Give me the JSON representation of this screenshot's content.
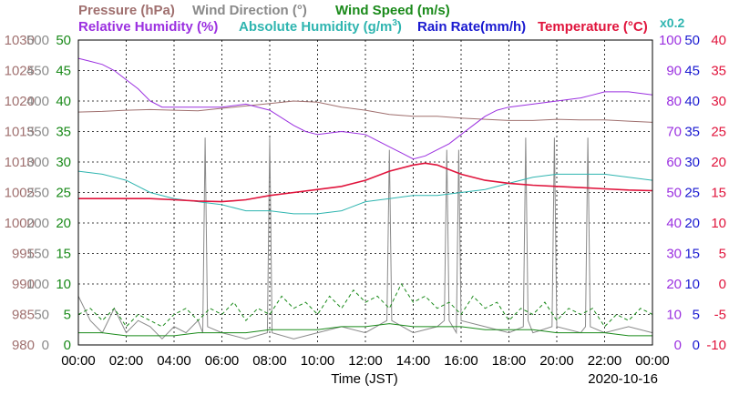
{
  "chart_data": {
    "type": "line",
    "title": "",
    "date": "2020-10-16",
    "xlabel": "Time (JST)",
    "x_ticks": [
      "00:00",
      "02:00",
      "04:00",
      "06:00",
      "08:00",
      "10:00",
      "12:00",
      "14:00",
      "16:00",
      "18:00",
      "20:00",
      "22:00",
      "00:00"
    ],
    "legend": {
      "pressure": "Pressure (hPa)",
      "wind_direction": "Wind Direction (°)",
      "wind_speed": "Wind Speed (m/s)",
      "relative_humidity": "Relative Humidity (%)",
      "absolute_humidity": "Absolute Humidity (g/m",
      "absolute_humidity_sup": "3",
      "absolute_humidity_close": ")",
      "rain_rate": "Rain Rate(mm/h)",
      "temperature": "Temperature (°C)",
      "absolute_humidity_scale": "x0.2"
    },
    "axes": {
      "pressure": {
        "ticks": [
          "980",
          "985",
          "990",
          "995",
          "1000",
          "1005",
          "1010",
          "1015",
          "1020",
          "1025",
          "1030"
        ],
        "range": [
          980,
          1030
        ]
      },
      "wind_direction": {
        "ticks": [
          "0",
          "50",
          "100",
          "150",
          "200",
          "250",
          "300",
          "350",
          "400",
          "450",
          "500"
        ],
        "range": [
          0,
          500
        ]
      },
      "wind_speed": {
        "ticks": [
          "0",
          "5",
          "10",
          "15",
          "20",
          "25",
          "30",
          "35",
          "40",
          "45",
          "50"
        ],
        "range": [
          0,
          50
        ]
      },
      "relative_humidity": {
        "ticks": [
          "0",
          "10",
          "20",
          "30",
          "40",
          "50",
          "60",
          "70",
          "80",
          "90",
          "100"
        ],
        "range": [
          0,
          100
        ]
      },
      "rain_rate": {
        "ticks": [
          "0",
          "5",
          "10",
          "15",
          "20",
          "25",
          "30",
          "35",
          "40",
          "45",
          "50"
        ],
        "range": [
          0,
          50
        ]
      },
      "temperature": {
        "ticks": [
          "-10",
          "-5",
          "0",
          "5",
          "10",
          "15",
          "20",
          "25",
          "30",
          "35",
          "40"
        ],
        "range": [
          -10,
          40
        ]
      }
    },
    "x_range_hours": [
      0,
      24
    ],
    "grid": true,
    "colors": {
      "pressure": "#a0706f",
      "wind_direction": "#8a8a8a",
      "wind_speed": "#1a8a1a",
      "relative_humidity": "#9b30e0",
      "absolute_humidity": "#2fb5b0",
      "rain_rate": "#1a1ad0",
      "temperature": "#e0143c"
    },
    "series": [
      {
        "key": "pressure",
        "name": "Pressure (hPa)",
        "x": [
          0,
          1,
          2,
          3,
          4,
          5,
          6,
          7,
          8,
          9,
          10,
          11,
          12,
          13,
          14,
          15,
          16,
          17,
          18,
          19,
          20,
          21,
          22,
          23,
          24
        ],
        "y": [
          1018.2,
          1018.3,
          1018.5,
          1018.6,
          1018.5,
          1018.4,
          1018.8,
          1019.2,
          1019.6,
          1020.0,
          1019.8,
          1019.0,
          1018.5,
          1017.8,
          1017.5,
          1017.5,
          1017.2,
          1017.0,
          1016.8,
          1016.8,
          1017.0,
          1016.9,
          1016.9,
          1016.7,
          1016.5
        ]
      },
      {
        "key": "relative_humidity",
        "name": "Relative Humidity (%)",
        "x": [
          0,
          0.5,
          1,
          1.5,
          2,
          2.5,
          3,
          3.5,
          4,
          4.5,
          5,
          6,
          7,
          8,
          9,
          9.5,
          10,
          11,
          12,
          12.5,
          13,
          13.5,
          14,
          14.5,
          15,
          15.5,
          16,
          16.5,
          17,
          17.5,
          18,
          19,
          20,
          21,
          21.5,
          22,
          23,
          24
        ],
        "y": [
          94,
          93,
          92,
          90,
          87,
          84,
          80,
          78,
          78,
          78,
          78,
          78,
          79,
          77,
          72,
          70,
          69,
          70,
          69,
          67,
          65,
          63,
          61,
          62,
          64,
          66,
          69,
          72,
          75,
          77,
          78,
          79,
          80,
          81,
          82,
          83,
          83,
          82
        ]
      },
      {
        "key": "absolute_humidity",
        "name": "Absolute Humidity (g/m3)",
        "x": [
          0,
          1,
          2,
          3,
          4,
          5,
          6,
          7,
          8,
          9,
          10,
          11,
          12,
          13,
          14,
          15,
          16,
          17,
          18,
          19,
          20,
          21,
          22,
          23,
          24
        ],
        "y": [
          57,
          56,
          54,
          50,
          48,
          47,
          46,
          44,
          44,
          43,
          43,
          44,
          47,
          48,
          49,
          49,
          50,
          51,
          53,
          55,
          56,
          56,
          56,
          55,
          54
        ]
      },
      {
        "key": "temperature",
        "name": "Temperature (°C)",
        "x": [
          0,
          1,
          2,
          3,
          4,
          5,
          6,
          7,
          8,
          9,
          10,
          11,
          12,
          13,
          14,
          14.5,
          15,
          16,
          17,
          18,
          19,
          20,
          21,
          22,
          23,
          24
        ],
        "y": [
          14.0,
          14.0,
          14.0,
          14.0,
          13.8,
          13.6,
          13.5,
          13.8,
          14.5,
          15.0,
          15.5,
          16.0,
          17.0,
          18.5,
          19.5,
          19.8,
          19.5,
          18.0,
          17.0,
          16.5,
          16.2,
          16.0,
          15.8,
          15.6,
          15.4,
          15.3
        ]
      },
      {
        "key": "wind_speed_max",
        "name": "Wind Speed (m/s) gust",
        "x": [
          0,
          0.5,
          1,
          1.5,
          2,
          2.5,
          3,
          3.5,
          4,
          4.5,
          5,
          5.5,
          6,
          6.5,
          7,
          7.5,
          8,
          8.5,
          9,
          9.5,
          10,
          10.5,
          11,
          11.5,
          12,
          12.5,
          13,
          13.5,
          14,
          14.5,
          15,
          15.5,
          16,
          16.5,
          17,
          17.5,
          18,
          18.5,
          19,
          19.5,
          20,
          20.5,
          21,
          21.5,
          22,
          22.5,
          23,
          23.5,
          24
        ],
        "y": [
          5,
          6,
          4,
          6,
          3,
          5,
          4,
          3,
          5,
          6,
          4,
          6,
          5,
          7,
          4,
          6,
          5,
          8,
          6,
          7,
          5,
          8,
          6,
          9,
          7,
          8,
          6,
          10,
          7,
          8,
          6,
          7,
          5,
          8,
          6,
          7,
          4,
          6,
          5,
          7,
          4,
          6,
          5,
          6,
          3,
          5,
          4,
          6,
          5
        ]
      },
      {
        "key": "wind_speed_avg",
        "name": "Wind Speed (m/s) mean",
        "x": [
          0,
          1,
          2,
          3,
          4,
          5,
          6,
          7,
          8,
          9,
          10,
          11,
          12,
          13,
          14,
          15,
          16,
          17,
          18,
          19,
          20,
          21,
          22,
          23,
          24
        ],
        "y": [
          2,
          2,
          1.5,
          1.5,
          1.5,
          2,
          2,
          2,
          2.5,
          2.5,
          2.5,
          3,
          3,
          3.5,
          3,
          3,
          3,
          2.5,
          2.5,
          2.5,
          2,
          2,
          2,
          1.5,
          1.5
        ]
      },
      {
        "key": "wind_direction",
        "name": "Wind Direction (°)",
        "x": [
          0,
          0.5,
          1,
          1.5,
          2,
          2.5,
          3,
          3.5,
          4,
          4.5,
          5,
          5.2,
          5.3,
          5.4,
          6,
          7,
          7.9,
          8.0,
          8.1,
          9,
          10,
          11,
          12,
          12.9,
          13.0,
          13.1,
          14,
          15,
          15.3,
          15.4,
          15.5,
          15.8,
          15.9,
          16,
          17,
          18,
          18.6,
          18.7,
          18.8,
          19,
          19.8,
          19.9,
          20,
          21,
          21.2,
          21.3,
          21.4,
          22,
          23,
          24
        ],
        "y": [
          80,
          40,
          20,
          60,
          20,
          40,
          30,
          10,
          30,
          20,
          40,
          20,
          340,
          30,
          20,
          10,
          20,
          340,
          20,
          10,
          20,
          30,
          20,
          40,
          320,
          40,
          20,
          30,
          40,
          320,
          40,
          20,
          320,
          40,
          30,
          20,
          30,
          340,
          40,
          20,
          30,
          340,
          30,
          20,
          30,
          340,
          30,
          20,
          30,
          20
        ]
      },
      {
        "key": "rain_rate",
        "name": "Rain Rate(mm/h)",
        "x": [
          0,
          24
        ],
        "y": [
          0,
          0
        ]
      }
    ]
  }
}
